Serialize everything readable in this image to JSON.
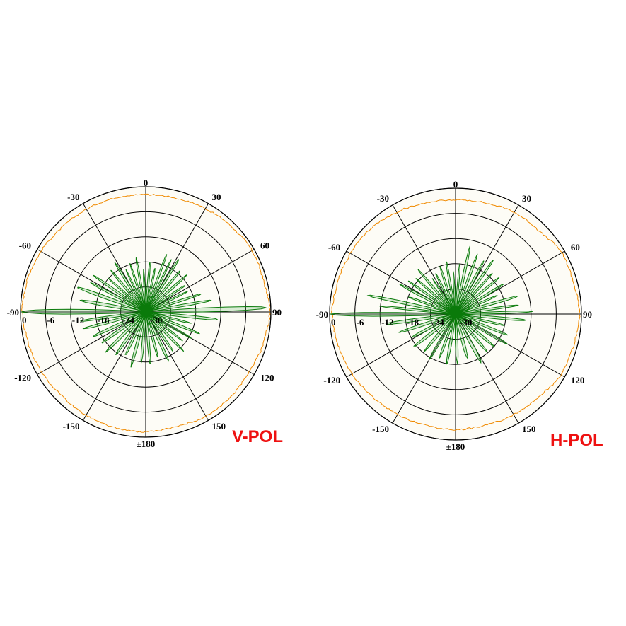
{
  "colors": {
    "background": "#ffffff",
    "plot_fill": "#fdfcf6",
    "grid": "#000000",
    "copol": "#f08a00",
    "xpol": "#0a7a0a",
    "xpol_fill": "#7cc27c",
    "title": "#ee1111"
  },
  "chart_data": [
    {
      "type": "polar-line",
      "title": "V-POL",
      "angle_ticks": [
        0,
        30,
        60,
        90,
        120,
        150,
        180,
        -150,
        -120,
        -90,
        -60,
        -30
      ],
      "angle_labels": [
        "0",
        "30",
        "60",
        "90",
        "120",
        "150",
        "±180",
        "-150",
        "-120",
        "-90",
        "-60",
        "-30"
      ],
      "radial_ticks_db": [
        0,
        -6,
        -12,
        -18,
        -24,
        -30
      ],
      "radial_labels": [
        "0",
        "-6",
        "-12",
        "-18",
        "-24",
        "-30"
      ],
      "radial_range_db": [
        -30,
        0
      ],
      "series": [
        {
          "role": "copol",
          "angles": [
            0,
            15,
            30,
            45,
            60,
            75,
            90,
            105,
            120,
            135,
            150,
            165,
            180,
            -165,
            -150,
            -135,
            -120,
            -105,
            -90,
            -75,
            -60,
            -45,
            -30,
            -15
          ],
          "values_db": [
            -1.9,
            -1.8,
            -1.4,
            -1.0,
            -0.6,
            -0.8,
            -0.3,
            -0.8,
            -1.4,
            -1.2,
            -1.2,
            -1.6,
            -1.3,
            -1.3,
            -1.4,
            -1.6,
            -1.2,
            -0.9,
            -0.4,
            -0.6,
            -1.0,
            -1.5,
            -1.6,
            -1.7
          ]
        },
        {
          "role": "xpol",
          "angles": [
            -90,
            -80,
            -70,
            -62,
            -55,
            -48,
            -40,
            -32,
            -25,
            -18,
            -10,
            -3,
            5,
            12,
            20,
            26,
            32,
            40,
            48,
            56,
            64,
            72,
            80,
            88,
            96,
            104,
            112,
            120,
            128,
            136,
            145,
            155,
            165,
            175,
            -175,
            -165,
            -155,
            -145,
            -135,
            -125,
            -115,
            -105,
            -98
          ],
          "values_db": [
            -0.5,
            -14,
            -12.5,
            -15,
            -14.5,
            -18,
            -17,
            -16,
            -19,
            -18,
            -17,
            -20,
            -18,
            -19,
            -15.5,
            -16,
            -15,
            -17,
            -16.5,
            -18.5,
            -19,
            -16,
            -14,
            -1,
            -12.5,
            -19,
            -16,
            -17.5,
            -19,
            -17,
            -18.5,
            -17,
            -19,
            -17.5,
            -18,
            -16.5,
            -18.5,
            -17.5,
            -16.5,
            -17,
            -16,
            -14.5,
            -14
          ]
        }
      ]
    },
    {
      "type": "polar-line",
      "title": "H-POL",
      "angle_ticks": [
        0,
        30,
        60,
        90,
        120,
        150,
        180,
        -150,
        -120,
        -90,
        -60,
        -30
      ],
      "angle_labels": [
        "0",
        "30",
        "60",
        "90",
        "120",
        "150",
        "±180",
        "-150",
        "-120",
        "-90",
        "-60",
        "-30"
      ],
      "radial_ticks_db": [
        0,
        -6,
        -12,
        -18,
        -24,
        -30
      ],
      "radial_labels": [
        "0",
        "-6",
        "-12",
        "-18",
        "-24",
        "-30"
      ],
      "radial_range_db": [
        -30,
        0
      ],
      "series": [
        {
          "role": "copol",
          "angles": [
            0,
            15,
            30,
            45,
            60,
            75,
            90,
            105,
            120,
            135,
            150,
            165,
            180,
            -165,
            -150,
            -135,
            -120,
            -105,
            -90,
            -75,
            -60,
            -45,
            -30,
            -15
          ],
          "values_db": [
            -2.8,
            -2.6,
            -2.0,
            -1.9,
            -0.8,
            -0.9,
            -0.5,
            -0.9,
            -1.1,
            -2.0,
            -2.3,
            -2.6,
            -2.5,
            -2.6,
            -2.4,
            -2.1,
            -1.5,
            -1.1,
            -0.6,
            -0.9,
            -1.1,
            -1.3,
            -2.0,
            -2.6
          ]
        },
        {
          "role": "xpol",
          "angles": [
            -90,
            -84,
            -78,
            -70,
            -62,
            -55,
            -48,
            -40,
            -33,
            -26,
            -18,
            -10,
            -3,
            5,
            12,
            20,
            28,
            35,
            42,
            50,
            58,
            66,
            74,
            82,
            88,
            95,
            103,
            112,
            120,
            130,
            140,
            152,
            165,
            178,
            -170,
            -160,
            -150,
            -140,
            -128,
            -118,
            -108,
            -98
          ],
          "values_db": [
            -0.3,
            -12,
            -8.5,
            -18,
            -15,
            -16,
            -17.5,
            -16,
            -20,
            -19,
            -18,
            -17,
            -20,
            -18,
            -13.5,
            -15,
            -15.5,
            -14,
            -17,
            -16.5,
            -16.5,
            -19,
            -14.5,
            -15,
            -11.5,
            -13,
            -18,
            -16.5,
            -15.5,
            -18,
            -18.5,
            -17,
            -19,
            -18.5,
            -18,
            -19,
            -17.5,
            -18.5,
            -17.5,
            -18,
            -16,
            -13
          ]
        }
      ]
    }
  ]
}
